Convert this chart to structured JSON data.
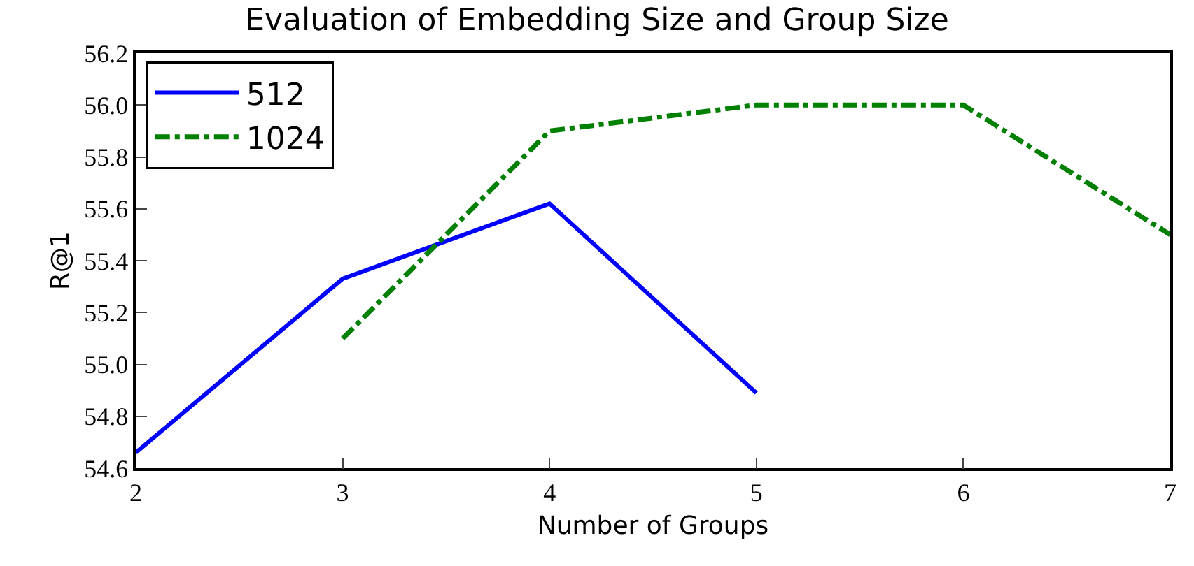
{
  "chart_data": {
    "type": "line",
    "title": "Evaluation of Embedding Size and Group Size",
    "xlabel": "Number of Groups",
    "ylabel": "R@1",
    "x": [
      2,
      3,
      4,
      5,
      6,
      7
    ],
    "series": [
      {
        "name": "512",
        "color": "#0000ff",
        "values": [
          54.66,
          55.33,
          55.62,
          54.89,
          null,
          null
        ],
        "line_style": "solid"
      },
      {
        "name": "1024",
        "color": "#008000",
        "values": [
          null,
          55.1,
          55.9,
          56.0,
          56.0,
          55.5
        ],
        "line_style": "dashdot"
      }
    ],
    "xlim": [
      2,
      7
    ],
    "xticks": [
      2,
      3,
      4,
      5,
      6,
      7
    ],
    "ylim": [
      54.6,
      56.2
    ],
    "yticks": [
      {
        "value": 54.6,
        "label": "54.6"
      },
      {
        "value": 54.8,
        "label": "54.8"
      },
      {
        "value": 55.0,
        "label": "55.0"
      },
      {
        "value": 55.2,
        "label": "55.2"
      },
      {
        "value": 55.4,
        "label": "55.4"
      },
      {
        "value": 55.6,
        "label": "55.6"
      },
      {
        "value": 55.8,
        "label": "55.8"
      },
      {
        "value": 56.0,
        "label": "56.0"
      },
      {
        "value": 56.2,
        "label": "56.2"
      }
    ],
    "legend": "top left",
    "marker": "none"
  }
}
